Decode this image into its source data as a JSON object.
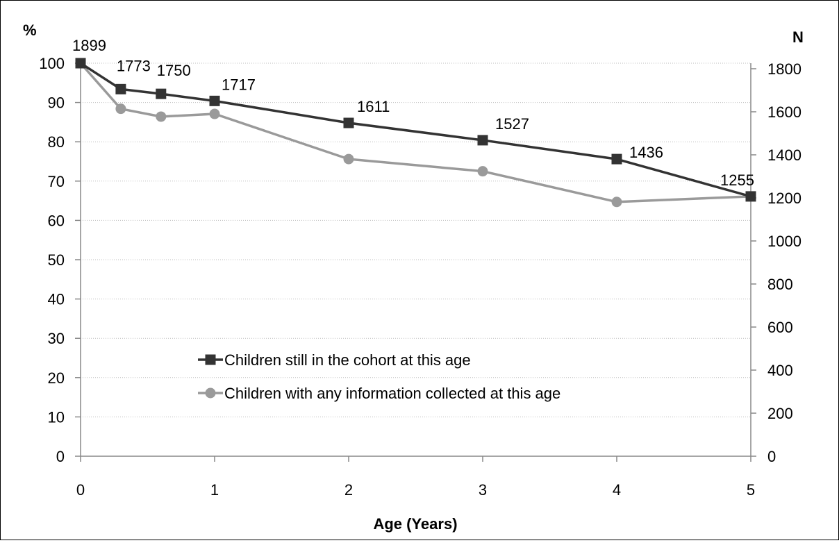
{
  "chart_data": {
    "type": "line",
    "title": "",
    "xlabel": "Age (Years)",
    "ylabel_left": "%",
    "ylabel_right": "N",
    "x_ticks": [
      0,
      1,
      2,
      3,
      4,
      5
    ],
    "y_ticks_left": [
      0,
      10,
      20,
      30,
      40,
      50,
      60,
      70,
      80,
      90,
      100
    ],
    "y_ticks_right": [
      0,
      200,
      400,
      600,
      800,
      1000,
      1200,
      1400,
      1600,
      1800
    ],
    "xlim": [
      0,
      5
    ],
    "ylim_left": [
      0,
      100
    ],
    "ylim_right": [
      0,
      2000
    ],
    "grid": "horizontal dotted",
    "legend_position": "lower-left (inside)",
    "series": [
      {
        "name": "Children still in the cohort at this age",
        "marker": "square",
        "color": "#333333",
        "x": [
          0,
          0.3,
          0.6,
          1,
          2,
          3,
          4,
          5
        ],
        "y": [
          100,
          93.4,
          92.2,
          90.4,
          84.8,
          80.4,
          75.6,
          66.1
        ],
        "labels": [
          "1899",
          "1773",
          "1750",
          "1717",
          "1611",
          "1527",
          "1436",
          "1255"
        ]
      },
      {
        "name": "Children with any information collected at this age",
        "marker": "circle",
        "color": "#9a9a9a",
        "x": [
          0,
          0.3,
          0.6,
          1,
          2,
          3,
          4,
          5
        ],
        "y": [
          100,
          88.4,
          86.4,
          87.1,
          75.6,
          72.5,
          64.7,
          66.1
        ]
      }
    ]
  }
}
